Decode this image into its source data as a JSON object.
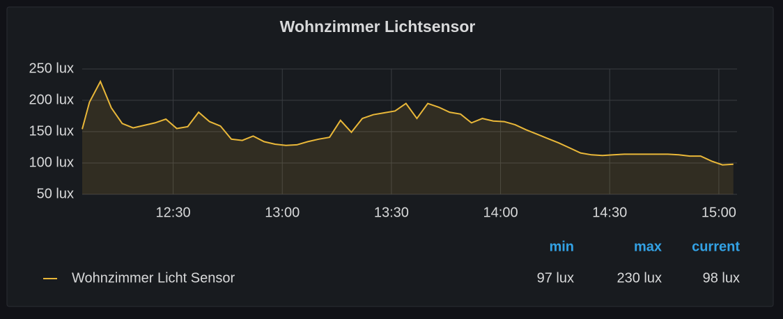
{
  "chart_data": {
    "type": "line",
    "title": "Wohnzimmer Lichtsensor",
    "x": [
      "12:05",
      "12:07",
      "12:10",
      "12:13",
      "12:16",
      "12:19",
      "12:22",
      "12:25",
      "12:28",
      "12:31",
      "12:34",
      "12:37",
      "12:40",
      "12:43",
      "12:46",
      "12:49",
      "12:52",
      "12:55",
      "12:58",
      "13:01",
      "13:04",
      "13:07",
      "13:10",
      "13:13",
      "13:16",
      "13:19",
      "13:22",
      "13:25",
      "13:28",
      "13:31",
      "13:34",
      "13:37",
      "13:40",
      "13:43",
      "13:46",
      "13:49",
      "13:52",
      "13:55",
      "13:58",
      "14:01",
      "14:04",
      "14:07",
      "14:10",
      "14:13",
      "14:16",
      "14:19",
      "14:22",
      "14:25",
      "14:28",
      "14:31",
      "14:34",
      "14:37",
      "14:40",
      "14:43",
      "14:46",
      "14:49",
      "14:52",
      "14:55",
      "14:58",
      "15:01",
      "15:04"
    ],
    "series": [
      {
        "name": "Wohnzimmer Licht Sensor",
        "color": "#eab839",
        "values": [
          154,
          197,
          230,
          188,
          163,
          156,
          160,
          164,
          170,
          155,
          158,
          181,
          166,
          159,
          138,
          136,
          143,
          134,
          130,
          128,
          129,
          134,
          138,
          141,
          168,
          149,
          171,
          177,
          180,
          183,
          195,
          171,
          195,
          189,
          181,
          178,
          164,
          171,
          167,
          166,
          161,
          153,
          146,
          139,
          132,
          124,
          116,
          113,
          112,
          113,
          114,
          114,
          114,
          114,
          114,
          113,
          111,
          111,
          103,
          97,
          98
        ]
      }
    ],
    "xlim": [
      "12:05",
      "15:05"
    ],
    "xticks": [
      "12:30",
      "13:00",
      "13:30",
      "14:00",
      "14:30",
      "15:00"
    ],
    "ylim": [
      50,
      250
    ],
    "yticks": [
      {
        "value": 50,
        "label": "50 lux"
      },
      {
        "value": 100,
        "label": "100 lux"
      },
      {
        "value": 150,
        "label": "150 lux"
      },
      {
        "value": 200,
        "label": "200 lux"
      },
      {
        "value": 250,
        "label": "250 lux"
      }
    ],
    "grid": true,
    "stats_headers": [
      "min",
      "max",
      "current"
    ],
    "stats_values": [
      97,
      230,
      98
    ],
    "stats_value_labels": [
      "97 lux",
      "230 lux",
      "98 lux"
    ]
  }
}
